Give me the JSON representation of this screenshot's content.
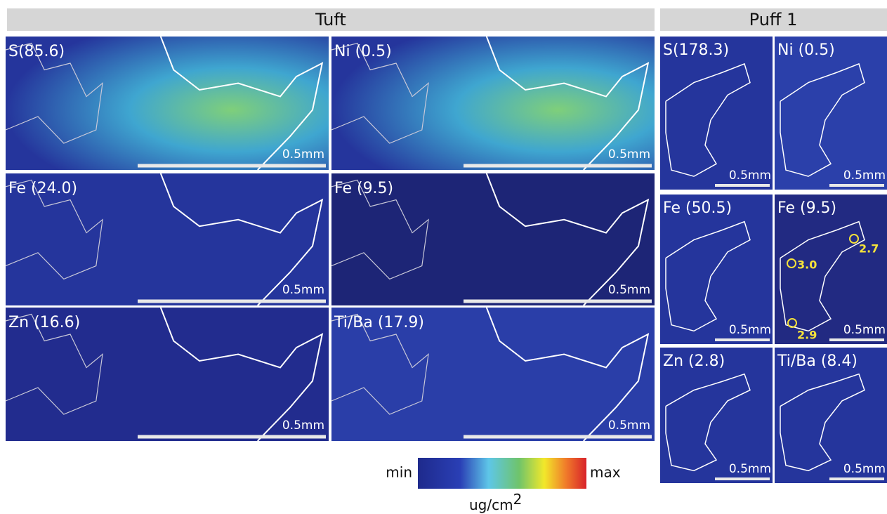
{
  "tuft": {
    "title": "Tuft",
    "panels": [
      {
        "label": "S(85.6)",
        "scale": "0.5mm"
      },
      {
        "label": "Ni (0.5)",
        "scale": "0.5mm"
      },
      {
        "label": "Fe (24.0)",
        "scale": "0.5mm"
      },
      {
        "label": "Fe (9.5)",
        "scale": "0.5mm"
      },
      {
        "label": "Zn (16.6)",
        "scale": "0.5mm"
      },
      {
        "label": "Ti/Ba (17.9)",
        "scale": "0.5mm"
      }
    ]
  },
  "puff": {
    "title": "Puff 1",
    "panels": [
      {
        "label": "S(178.3)",
        "scale": "0.5mm"
      },
      {
        "label": "Ni (0.5)",
        "scale": "0.5mm"
      },
      {
        "label": "Fe (50.5)",
        "scale": "0.5mm"
      },
      {
        "label": "Fe (9.5)",
        "scale": "0.5mm",
        "annotations": [
          "3.0",
          "2.7",
          "2.9"
        ]
      },
      {
        "label": "Zn (2.8)",
        "scale": "0.5mm"
      },
      {
        "label": "Ti/Ba (8.4)",
        "scale": "0.5mm"
      }
    ]
  },
  "colorbar": {
    "min": "min",
    "max": "max",
    "unit": "ug/cm",
    "unit_exponent": "2"
  }
}
